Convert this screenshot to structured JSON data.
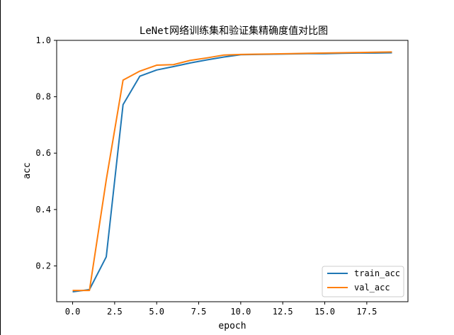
{
  "chart_data": {
    "type": "line",
    "title": "LeNet网络训练集和验证集精确度值对比图",
    "xlabel": "epoch",
    "ylabel": "acc",
    "xlim": [
      -0.95,
      19.95
    ],
    "ylim": [
      0.073,
      1.0
    ],
    "x_ticks": [
      0.0,
      2.5,
      5.0,
      7.5,
      10.0,
      12.5,
      15.0,
      17.5
    ],
    "x_tick_labels": [
      "0.0",
      "2.5",
      "5.0",
      "7.5",
      "10.0",
      "12.5",
      "15.0",
      "17.5"
    ],
    "y_ticks": [
      0.2,
      0.4,
      0.6,
      0.8,
      1.0
    ],
    "y_tick_labels": [
      "0.2",
      "0.4",
      "0.6",
      "0.8",
      "1.0"
    ],
    "grid": false,
    "legend_position": "lower-right",
    "x": [
      0,
      1,
      2,
      3,
      4,
      5,
      6,
      7,
      8,
      9,
      10,
      11,
      12,
      13,
      14,
      15,
      16,
      17,
      18,
      19
    ],
    "series": [
      {
        "name": "train_acc",
        "color": "#1f77b4",
        "values": [
          0.108,
          0.116,
          0.232,
          0.772,
          0.873,
          0.895,
          0.907,
          0.92,
          0.931,
          0.941,
          0.949,
          0.95,
          0.951,
          0.952,
          0.953,
          0.953,
          0.954,
          0.955,
          0.955,
          0.956
        ]
      },
      {
        "name": "val_acc",
        "color": "#ff7f0e",
        "values": [
          0.113,
          0.113,
          0.505,
          0.859,
          0.891,
          0.912,
          0.914,
          0.929,
          0.938,
          0.948,
          0.95,
          0.951,
          0.952,
          0.953,
          0.954,
          0.955,
          0.956,
          0.957,
          0.958,
          0.959
        ]
      }
    ]
  }
}
